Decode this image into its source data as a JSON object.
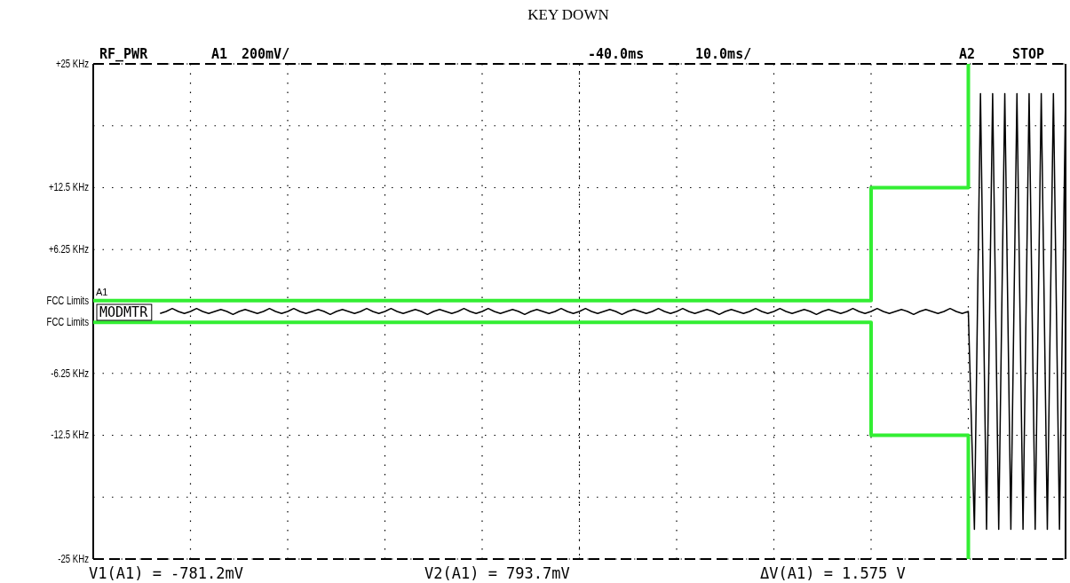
{
  "chart_data": {
    "type": "line",
    "title": "KEY DOWN",
    "categories": [
      null,
      null,
      null,
      null,
      null,
      null,
      null,
      null,
      null,
      null,
      null,
      null,
      null,
      null,
      null,
      null,
      null,
      null,
      null,
      null,
      null,
      null,
      null,
      null,
      null,
      null,
      null,
      null,
      null,
      null,
      null,
      null,
      null,
      null,
      null,
      null,
      null,
      null,
      null,
      null,
      null,
      null,
      null,
      null,
      null,
      null,
      null,
      null,
      null,
      null,
      null,
      null,
      null,
      null,
      null,
      null,
      null,
      null,
      null,
      null,
      null,
      null,
      null,
      null,
      null,
      null,
      null,
      null,
      null,
      null,
      null,
      null,
      null,
      null,
      null,
      null,
      null,
      null,
      null,
      null,
      null,
      null,
      null,
      null,
      null,
      null,
      null,
      null,
      null,
      null,
      null,
      null,
      null,
      null,
      null,
      null,
      null,
      null,
      null,
      null,
      null,
      null,
      null,
      null,
      null,
      null,
      null,
      null,
      null,
      null,
      null,
      null,
      null,
      null,
      null,
      null,
      null,
      null,
      null,
      null,
      null,
      null,
      null,
      null,
      null,
      null,
      null,
      null,
      null,
      null,
      null,
      null,
      null,
      null,
      null,
      null,
      null,
      null,
      null,
      null,
      null,
      null,
      null,
      null,
      null,
      null,
      null,
      null,
      null,
      null,
      null,
      null,
      null,
      null,
      null,
      null,
      null,
      null,
      null,
      null,
      null
    ],
    "ylim": [
      -25,
      25
    ],
    "yticks": [
      {
        "value": 25,
        "label": "+25 KHz"
      },
      {
        "value": 18.75,
        "label": null
      },
      {
        "value": 12.5,
        "label": "+12.5 KHz"
      },
      {
        "value": 6.25,
        "label": "+6.25 KHz"
      },
      {
        "value": 1.1,
        "label": "FCC Limits"
      },
      {
        "value": -1.1,
        "label": "FCC Limits"
      },
      {
        "value": -6.25,
        "label": "-6.25 KHz"
      },
      {
        "value": -12.5,
        "label": "-12.5 KHz"
      },
      {
        "value": -18.75,
        "label": null
      },
      {
        "value": -25,
        "label": "-25 KHz"
      }
    ],
    "tick_labels": "y",
    "grid": true,
    "marker": "none",
    "line_style": "solid",
    "series": [
      {
        "color": "#000000",
        "type": "line",
        "values": [
          null,
          null,
          null,
          null,
          null,
          null,
          null,
          null,
          null,
          null,
          null,
          -0.2,
          0,
          0.3,
          0,
          -0.2,
          0,
          0.3,
          0,
          -0.2,
          0,
          0.2,
          0,
          -0.3,
          0,
          0.2,
          0,
          -0.2,
          0,
          0.3,
          0,
          -0.2,
          0,
          0.3,
          0,
          -0.2,
          0,
          0.2,
          0,
          -0.3,
          0,
          0.2,
          0,
          -0.2,
          0,
          0.3,
          0,
          -0.2,
          0,
          0.3,
          0,
          -0.2,
          0,
          0.2,
          0,
          -0.3,
          0,
          0.2,
          0,
          -0.2,
          0,
          0.3,
          0,
          -0.2,
          0,
          0.3,
          0,
          -0.2,
          0,
          0.2,
          0,
          -0.3,
          0,
          0.2,
          0,
          -0.2,
          0,
          0.3,
          0,
          -0.2,
          0,
          0.3,
          0,
          -0.2,
          0,
          0.2,
          0,
          -0.3,
          0,
          0.2,
          0,
          -0.2,
          0,
          0.3,
          0,
          -0.2,
          0,
          0.3,
          0,
          -0.2,
          0,
          0.2,
          0,
          -0.3,
          0,
          0.2,
          0,
          -0.2,
          0,
          0.3,
          0,
          -0.2,
          0,
          0.3,
          0,
          -0.2,
          0,
          0.2,
          0,
          -0.3,
          0,
          0.2,
          0,
          -0.2,
          0,
          0.3,
          0,
          -0.2,
          0,
          0.3,
          0,
          -0.2,
          0,
          0.2,
          0,
          -0.3,
          0,
          0.2,
          0,
          -0.2,
          0,
          0.3,
          0,
          -0.2,
          0,
          -22,
          22,
          -22,
          22,
          -22,
          22,
          -22,
          22,
          -22,
          22,
          -22,
          22,
          -22,
          22,
          -22,
          22
        ]
      },
      {
        "color": "#33ee33",
        "type": "step",
        "values": [
          1.1,
          1.1,
          1.1,
          1.1,
          1.1,
          1.1,
          1.1,
          1.1,
          1.1,
          1.1,
          1.1,
          1.1,
          1.1,
          1.1,
          1.1,
          1.1,
          1.1,
          1.1,
          1.1,
          1.1,
          1.1,
          1.1,
          1.1,
          1.1,
          1.1,
          1.1,
          1.1,
          1.1,
          1.1,
          1.1,
          1.1,
          1.1,
          1.1,
          1.1,
          1.1,
          1.1,
          1.1,
          1.1,
          1.1,
          1.1,
          1.1,
          1.1,
          1.1,
          1.1,
          1.1,
          1.1,
          1.1,
          1.1,
          1.1,
          1.1,
          1.1,
          1.1,
          1.1,
          1.1,
          1.1,
          1.1,
          1.1,
          1.1,
          1.1,
          1.1,
          1.1,
          1.1,
          1.1,
          1.1,
          1.1,
          1.1,
          1.1,
          1.1,
          1.1,
          1.1,
          1.1,
          1.1,
          1.1,
          1.1,
          1.1,
          1.1,
          1.1,
          1.1,
          1.1,
          1.1,
          1.1,
          1.1,
          1.1,
          1.1,
          1.1,
          1.1,
          1.1,
          1.1,
          1.1,
          1.1,
          1.1,
          1.1,
          1.1,
          1.1,
          1.1,
          1.1,
          1.1,
          1.1,
          1.1,
          1.1,
          1.1,
          1.1,
          1.1,
          1.1,
          1.1,
          1.1,
          1.1,
          1.1,
          1.1,
          1.1,
          1.1,
          1.1,
          1.1,
          1.1,
          1.1,
          1.1,
          1.1,
          1.1,
          1.1,
          1.1,
          1.1,
          1.1,
          1.1,
          1.1,
          1.1,
          1.1,
          1.1,
          1.1,
          12.5,
          12.5,
          12.5,
          12.5,
          12.5,
          12.5,
          12.5,
          12.5,
          12.5,
          12.5,
          12.5,
          12.5,
          12.5,
          12.5,
          12.5,
          12.5,
          25,
          null,
          null,
          null,
          null,
          null,
          null,
          null,
          null,
          null,
          null,
          null,
          null,
          null,
          null,
          null,
          null
        ]
      },
      {
        "color": "#33ee33",
        "type": "step",
        "values": [
          -1.1,
          -1.1,
          -1.1,
          -1.1,
          -1.1,
          -1.1,
          -1.1,
          -1.1,
          -1.1,
          -1.1,
          -1.1,
          -1.1,
          -1.1,
          -1.1,
          -1.1,
          -1.1,
          -1.1,
          -1.1,
          -1.1,
          -1.1,
          -1.1,
          -1.1,
          -1.1,
          -1.1,
          -1.1,
          -1.1,
          -1.1,
          -1.1,
          -1.1,
          -1.1,
          -1.1,
          -1.1,
          -1.1,
          -1.1,
          -1.1,
          -1.1,
          -1.1,
          -1.1,
          -1.1,
          -1.1,
          -1.1,
          -1.1,
          -1.1,
          -1.1,
          -1.1,
          -1.1,
          -1.1,
          -1.1,
          -1.1,
          -1.1,
          -1.1,
          -1.1,
          -1.1,
          -1.1,
          -1.1,
          -1.1,
          -1.1,
          -1.1,
          -1.1,
          -1.1,
          -1.1,
          -1.1,
          -1.1,
          -1.1,
          -1.1,
          -1.1,
          -1.1,
          -1.1,
          -1.1,
          -1.1,
          -1.1,
          -1.1,
          -1.1,
          -1.1,
          -1.1,
          -1.1,
          -1.1,
          -1.1,
          -1.1,
          -1.1,
          -1.1,
          -1.1,
          -1.1,
          -1.1,
          -1.1,
          -1.1,
          -1.1,
          -1.1,
          -1.1,
          -1.1,
          -1.1,
          -1.1,
          -1.1,
          -1.1,
          -1.1,
          -1.1,
          -1.1,
          -1.1,
          -1.1,
          -1.1,
          -1.1,
          -1.1,
          -1.1,
          -1.1,
          -1.1,
          -1.1,
          -1.1,
          -1.1,
          -1.1,
          -1.1,
          -1.1,
          -1.1,
          -1.1,
          -1.1,
          -1.1,
          -1.1,
          -1.1,
          -1.1,
          -1.1,
          -1.1,
          -1.1,
          -1.1,
          -1.1,
          -1.1,
          -1.1,
          -1.1,
          -1.1,
          -1.1,
          -12.5,
          -12.5,
          -12.5,
          -12.5,
          -12.5,
          -12.5,
          -12.5,
          -12.5,
          -12.5,
          -12.5,
          -12.5,
          -12.5,
          -12.5,
          -12.5,
          -12.5,
          -12.5,
          -25,
          null,
          null,
          null,
          null,
          null,
          null,
          null,
          null,
          null,
          null,
          null,
          null,
          null,
          null,
          null,
          null
        ]
      }
    ],
    "annotations": [
      "RF_PWR",
      "A1",
      "200mV/",
      "-40.0ms",
      "10.0ms/",
      "A2",
      "STOP",
      "MODMTR",
      "V1(A1) = -781.2mV",
      "V2(A1) = 793.7mV",
      "ΔV(A1) = 1.575 V",
      "A1"
    ]
  }
}
